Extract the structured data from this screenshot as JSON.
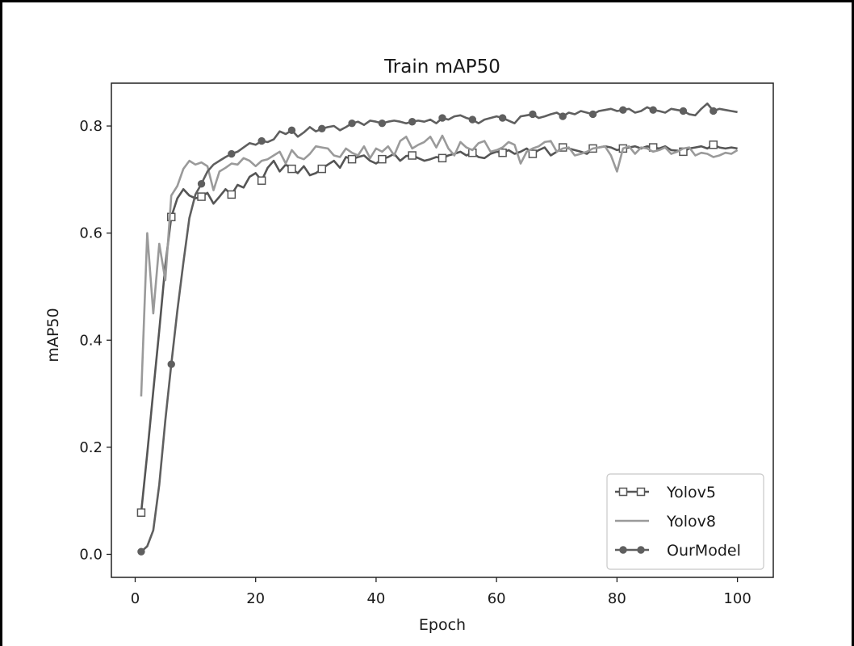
{
  "chart_data": {
    "type": "line",
    "title": "Train mAP50",
    "xlabel": "Epoch",
    "ylabel": "mAP50",
    "xlim": [
      -3.95,
      105.95
    ],
    "ylim": [
      -0.043,
      0.88
    ],
    "xticks": [
      0,
      20,
      40,
      60,
      80,
      100
    ],
    "yticks": [
      0.0,
      0.2,
      0.4,
      0.6,
      0.8
    ],
    "xtick_labels": [
      "0",
      "20",
      "40",
      "60",
      "80",
      "100"
    ],
    "ytick_labels": [
      "0.0",
      "0.2",
      "0.4",
      "0.6",
      "0.8"
    ],
    "grid": false,
    "legend_position": "lower-right",
    "legend": [
      "Yolov5",
      "Yolov8",
      "OurModel"
    ],
    "series": [
      {
        "name": "Yolov5",
        "color": "#555555",
        "marker": "square-open",
        "markevery": 5,
        "x": [
          1,
          2,
          3,
          4,
          5,
          6,
          7,
          8,
          9,
          10,
          11,
          12,
          13,
          14,
          15,
          16,
          17,
          18,
          19,
          20,
          21,
          22,
          23,
          24,
          25,
          26,
          27,
          28,
          29,
          30,
          31,
          32,
          33,
          34,
          35,
          36,
          37,
          38,
          39,
          40,
          41,
          42,
          43,
          44,
          45,
          46,
          47,
          48,
          49,
          50,
          51,
          52,
          53,
          54,
          55,
          56,
          57,
          58,
          59,
          60,
          61,
          62,
          63,
          64,
          65,
          66,
          67,
          68,
          69,
          70,
          71,
          72,
          73,
          74,
          75,
          76,
          77,
          78,
          79,
          80,
          81,
          82,
          83,
          84,
          85,
          86,
          87,
          88,
          89,
          90,
          91,
          92,
          93,
          94,
          95,
          96,
          97,
          98,
          99,
          100
        ],
        "y": [
          0.078,
          0.188,
          0.305,
          0.418,
          0.54,
          0.63,
          0.665,
          0.682,
          0.67,
          0.665,
          0.668,
          0.675,
          0.655,
          0.668,
          0.682,
          0.672,
          0.69,
          0.685,
          0.705,
          0.712,
          0.698,
          0.722,
          0.735,
          0.715,
          0.728,
          0.72,
          0.712,
          0.725,
          0.708,
          0.712,
          0.72,
          0.728,
          0.735,
          0.722,
          0.742,
          0.738,
          0.742,
          0.745,
          0.735,
          0.73,
          0.738,
          0.742,
          0.748,
          0.735,
          0.744,
          0.745,
          0.74,
          0.735,
          0.738,
          0.742,
          0.74,
          0.745,
          0.748,
          0.752,
          0.745,
          0.75,
          0.742,
          0.74,
          0.748,
          0.752,
          0.75,
          0.755,
          0.748,
          0.752,
          0.758,
          0.748,
          0.755,
          0.76,
          0.745,
          0.752,
          0.76,
          0.758,
          0.755,
          0.752,
          0.748,
          0.758,
          0.76,
          0.762,
          0.76,
          0.755,
          0.758,
          0.76,
          0.762,
          0.758,
          0.762,
          0.76,
          0.758,
          0.762,
          0.755,
          0.754,
          0.752,
          0.758,
          0.76,
          0.762,
          0.758,
          0.765,
          0.76,
          0.758,
          0.76,
          0.758
        ]
      },
      {
        "name": "Yolov8",
        "color": "#9a9a9a",
        "marker": "none",
        "x": [
          1,
          2,
          3,
          4,
          5,
          6,
          7,
          8,
          9,
          10,
          11,
          12,
          13,
          14,
          15,
          16,
          17,
          18,
          19,
          20,
          21,
          22,
          23,
          24,
          25,
          26,
          27,
          28,
          29,
          30,
          31,
          32,
          33,
          34,
          35,
          36,
          37,
          38,
          39,
          40,
          41,
          42,
          43,
          44,
          45,
          46,
          47,
          48,
          49,
          50,
          51,
          52,
          53,
          54,
          55,
          56,
          57,
          58,
          59,
          60,
          61,
          62,
          63,
          64,
          65,
          66,
          67,
          68,
          69,
          70,
          71,
          72,
          73,
          74,
          75,
          76,
          77,
          78,
          79,
          80,
          81,
          82,
          83,
          84,
          85,
          86,
          87,
          88,
          89,
          90,
          91,
          92,
          93,
          94,
          95,
          96,
          97,
          98,
          99,
          100
        ],
        "y": [
          0.295,
          0.6,
          0.45,
          0.58,
          0.512,
          0.67,
          0.688,
          0.72,
          0.735,
          0.728,
          0.732,
          0.725,
          0.68,
          0.715,
          0.722,
          0.73,
          0.728,
          0.74,
          0.735,
          0.725,
          0.735,
          0.738,
          0.745,
          0.752,
          0.73,
          0.755,
          0.742,
          0.738,
          0.748,
          0.762,
          0.76,
          0.758,
          0.745,
          0.742,
          0.758,
          0.75,
          0.745,
          0.762,
          0.74,
          0.758,
          0.752,
          0.762,
          0.745,
          0.772,
          0.78,
          0.758,
          0.765,
          0.77,
          0.78,
          0.76,
          0.782,
          0.758,
          0.745,
          0.77,
          0.76,
          0.755,
          0.768,
          0.772,
          0.752,
          0.755,
          0.76,
          0.77,
          0.765,
          0.73,
          0.752,
          0.758,
          0.762,
          0.77,
          0.772,
          0.752,
          0.758,
          0.76,
          0.745,
          0.748,
          0.752,
          0.758,
          0.76,
          0.762,
          0.745,
          0.715,
          0.758,
          0.762,
          0.748,
          0.76,
          0.758,
          0.752,
          0.755,
          0.76,
          0.748,
          0.752,
          0.758,
          0.76,
          0.745,
          0.75,
          0.748,
          0.742,
          0.745,
          0.75,
          0.748,
          0.755
        ]
      },
      {
        "name": "OurModel",
        "color": "#5f5f5f",
        "marker": "circle-filled",
        "markevery": 5,
        "x": [
          1,
          2,
          3,
          4,
          5,
          6,
          7,
          8,
          9,
          10,
          11,
          12,
          13,
          14,
          15,
          16,
          17,
          18,
          19,
          20,
          21,
          22,
          23,
          24,
          25,
          26,
          27,
          28,
          29,
          30,
          31,
          32,
          33,
          34,
          35,
          36,
          37,
          38,
          39,
          40,
          41,
          42,
          43,
          44,
          45,
          46,
          47,
          48,
          49,
          50,
          51,
          52,
          53,
          54,
          55,
          56,
          57,
          58,
          59,
          60,
          61,
          62,
          63,
          64,
          65,
          66,
          67,
          68,
          69,
          70,
          71,
          72,
          73,
          74,
          75,
          76,
          77,
          78,
          79,
          80,
          81,
          82,
          83,
          84,
          85,
          86,
          87,
          88,
          89,
          90,
          91,
          92,
          93,
          94,
          95,
          96,
          97,
          98,
          99,
          100
        ],
        "y": [
          0.005,
          0.015,
          0.045,
          0.13,
          0.25,
          0.355,
          0.455,
          0.545,
          0.628,
          0.672,
          0.692,
          0.715,
          0.728,
          0.735,
          0.742,
          0.748,
          0.752,
          0.76,
          0.768,
          0.765,
          0.772,
          0.77,
          0.775,
          0.79,
          0.785,
          0.792,
          0.78,
          0.788,
          0.798,
          0.79,
          0.795,
          0.798,
          0.8,
          0.792,
          0.798,
          0.805,
          0.808,
          0.802,
          0.81,
          0.808,
          0.805,
          0.808,
          0.81,
          0.808,
          0.805,
          0.808,
          0.81,
          0.808,
          0.812,
          0.805,
          0.815,
          0.812,
          0.818,
          0.82,
          0.815,
          0.812,
          0.805,
          0.812,
          0.815,
          0.818,
          0.815,
          0.81,
          0.805,
          0.818,
          0.82,
          0.822,
          0.815,
          0.818,
          0.822,
          0.825,
          0.818,
          0.825,
          0.822,
          0.828,
          0.825,
          0.822,
          0.828,
          0.83,
          0.832,
          0.828,
          0.83,
          0.832,
          0.825,
          0.828,
          0.835,
          0.83,
          0.828,
          0.825,
          0.832,
          0.83,
          0.828,
          0.822,
          0.82,
          0.832,
          0.842,
          0.828,
          0.832,
          0.83,
          0.828,
          0.826
        ]
      }
    ]
  }
}
